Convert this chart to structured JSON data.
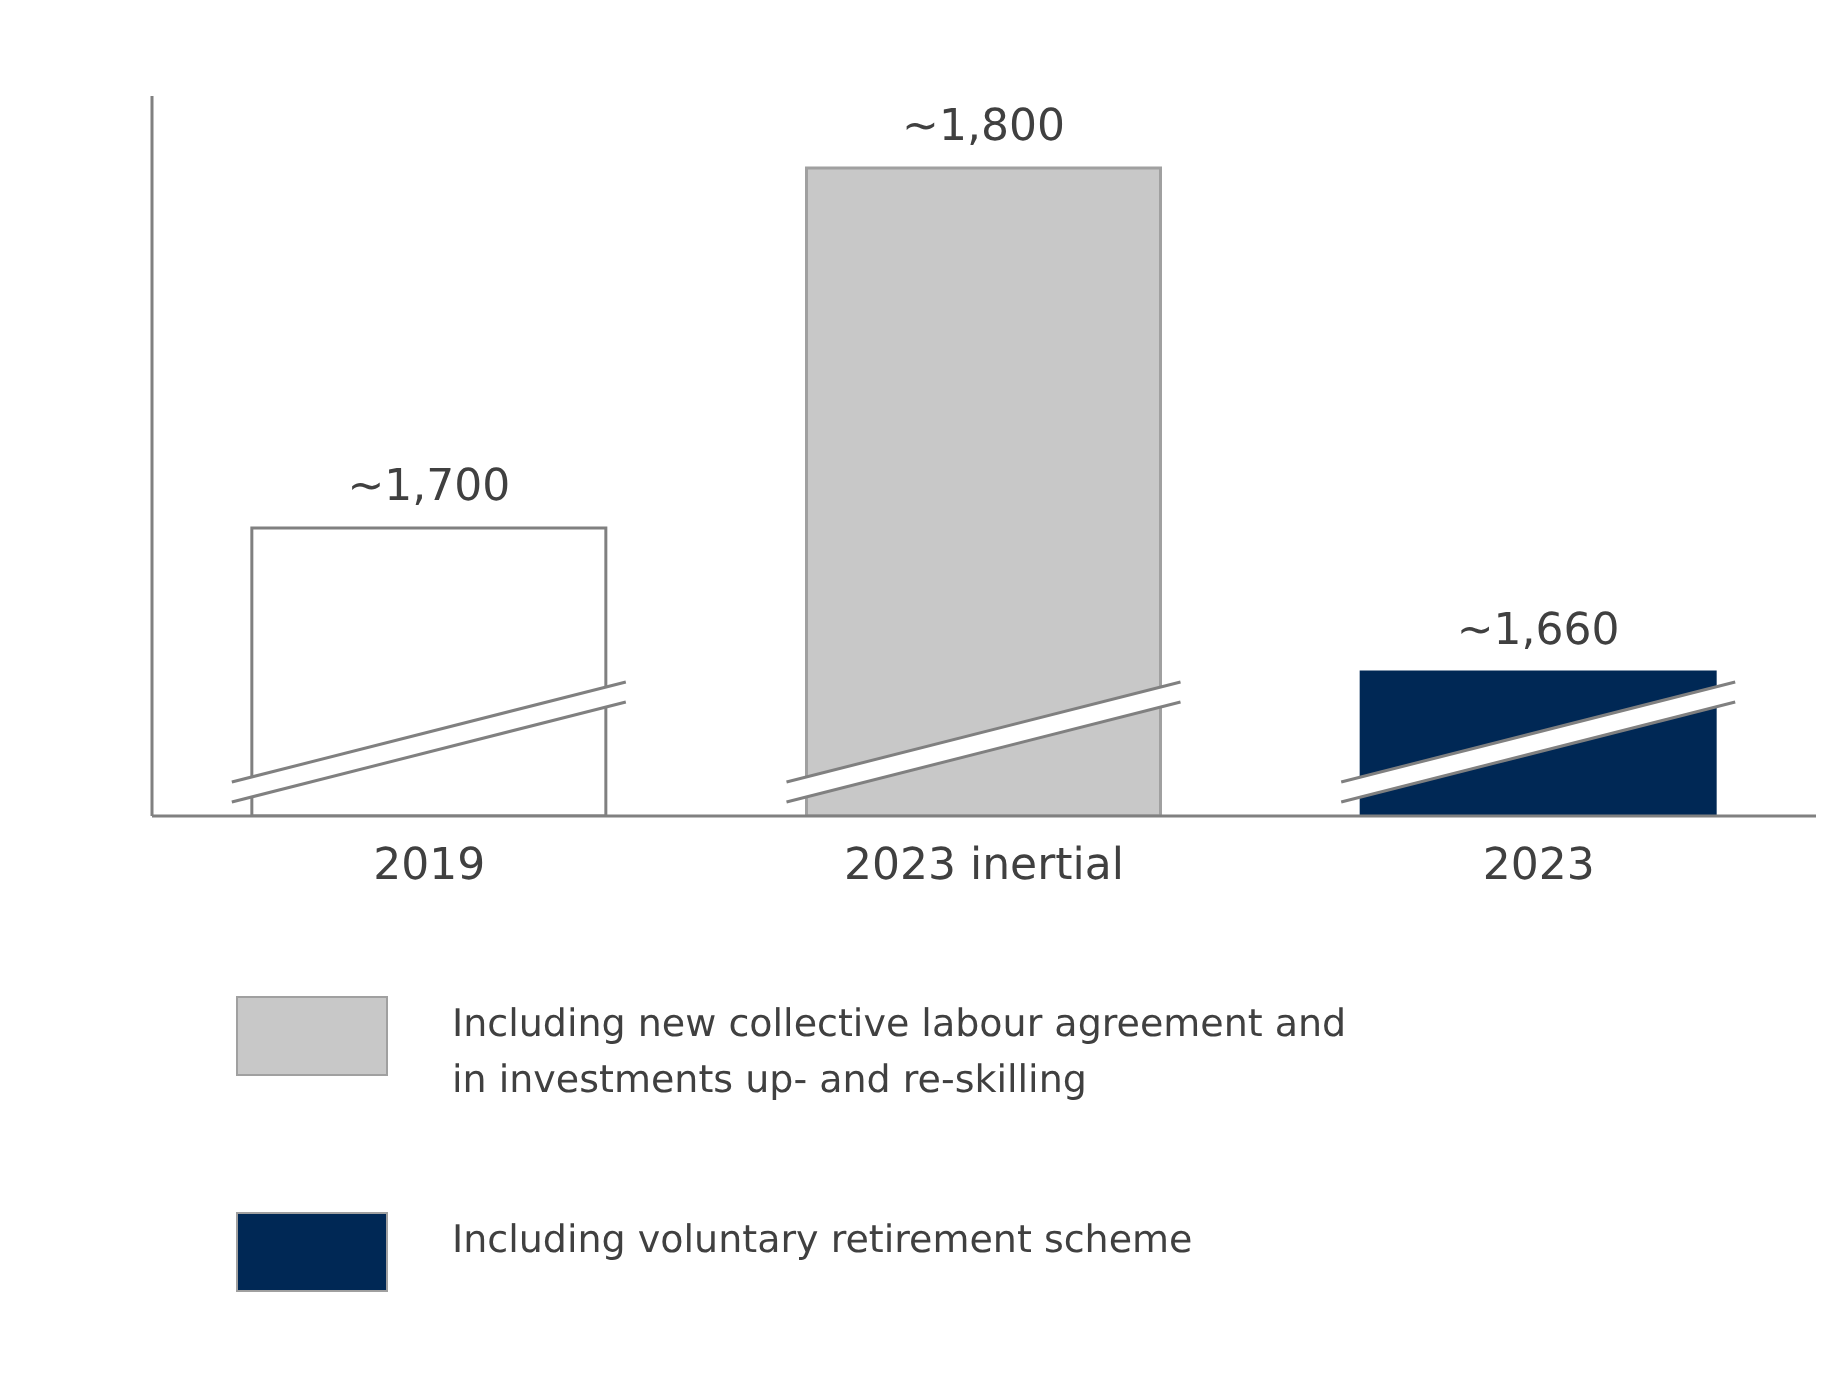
{
  "chart_data": {
    "type": "bar",
    "categories": [
      "2019",
      "2023 inertial",
      "2023"
    ],
    "values": [
      1700,
      1800,
      1660
    ],
    "value_labels": [
      "~1,700",
      "~1,800",
      "~1,660"
    ],
    "colors": [
      "#ffffff",
      "#c8c8c8",
      "#002855"
    ],
    "ylim": [
      1620,
      1820
    ],
    "tick_labels": "x",
    "grid": false,
    "annotations": [
      "Including new collective labour agreement and in investments up- and re-skilling",
      "Including voluntary retirement scheme"
    ]
  }
}
